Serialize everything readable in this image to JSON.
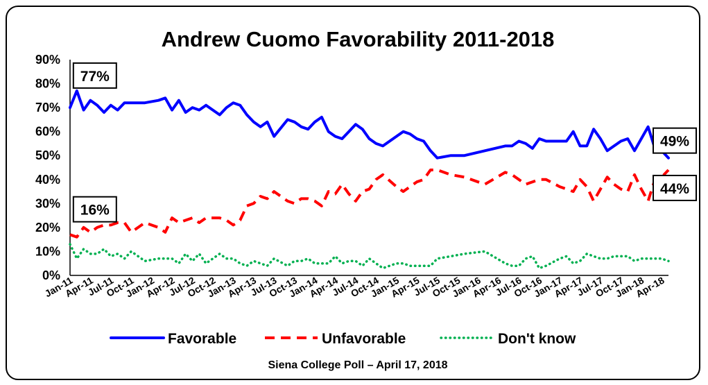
{
  "chart_data": {
    "type": "line",
    "title": "Andrew Cuomo Favorability 2011-2018",
    "source_note": "Siena College Poll – April 17, 2018",
    "ylim": [
      0,
      90
    ],
    "y_ticks": [
      "0%",
      "10%",
      "20%",
      "30%",
      "40%",
      "50%",
      "60%",
      "70%",
      "80%",
      "90%"
    ],
    "x_range": [
      "2011-01",
      "2018-04"
    ],
    "x_tick_labels": [
      "Jan-11",
      "Apr-11",
      "Jul-11",
      "Oct-11",
      "Jan-12",
      "Apr-12",
      "Jul-12",
      "Oct-12",
      "Jan-13",
      "Apr-13",
      "Jul-13",
      "Oct-13",
      "Jan-14",
      "Apr-14",
      "Jul-14",
      "Oct-14",
      "Jan-15",
      "Apr-15",
      "Jul-15",
      "Oct-15",
      "Jan-16",
      "Apr-16",
      "Jul-16",
      "Oct-16",
      "Jan-17",
      "Apr-17",
      "Jul-17",
      "Oct-17",
      "Jan-18",
      "Apr-18"
    ],
    "grid": false,
    "legend_position": "bottom",
    "series": [
      {
        "name": "Favorable",
        "color": "#0000ff",
        "style": "solid",
        "points": [
          [
            "2011-01",
            70
          ],
          [
            "2011-02",
            77
          ],
          [
            "2011-03",
            69
          ],
          [
            "2011-04",
            73
          ],
          [
            "2011-05",
            71
          ],
          [
            "2011-06",
            68
          ],
          [
            "2011-07",
            71
          ],
          [
            "2011-08",
            69
          ],
          [
            "2011-09",
            72
          ],
          [
            "2011-10",
            72
          ],
          [
            "2011-12",
            72
          ],
          [
            "2012-02",
            73
          ],
          [
            "2012-03",
            74
          ],
          [
            "2012-04",
            69
          ],
          [
            "2012-05",
            73
          ],
          [
            "2012-06",
            68
          ],
          [
            "2012-07",
            70
          ],
          [
            "2012-08",
            69
          ],
          [
            "2012-09",
            71
          ],
          [
            "2012-10",
            69
          ],
          [
            "2012-11",
            67
          ],
          [
            "2012-12",
            70
          ],
          [
            "2013-01",
            72
          ],
          [
            "2013-02",
            71
          ],
          [
            "2013-03",
            67
          ],
          [
            "2013-04",
            64
          ],
          [
            "2013-05",
            62
          ],
          [
            "2013-06",
            64
          ],
          [
            "2013-07",
            58
          ],
          [
            "2013-09",
            65
          ],
          [
            "2013-10",
            64
          ],
          [
            "2013-11",
            62
          ],
          [
            "2013-12",
            61
          ],
          [
            "2014-01",
            64
          ],
          [
            "2014-02",
            66
          ],
          [
            "2014-03",
            60
          ],
          [
            "2014-04",
            58
          ],
          [
            "2014-05",
            57
          ],
          [
            "2014-06",
            60
          ],
          [
            "2014-07",
            63
          ],
          [
            "2014-08",
            61
          ],
          [
            "2014-09",
            57
          ],
          [
            "2014-10",
            55
          ],
          [
            "2014-11",
            54
          ],
          [
            "2015-01",
            58
          ],
          [
            "2015-02",
            60
          ],
          [
            "2015-03",
            59
          ],
          [
            "2015-04",
            57
          ],
          [
            "2015-05",
            56
          ],
          [
            "2015-06",
            52
          ],
          [
            "2015-07",
            49
          ],
          [
            "2015-09",
            50
          ],
          [
            "2015-11",
            50
          ],
          [
            "2016-02",
            52
          ],
          [
            "2016-05",
            54
          ],
          [
            "2016-06",
            54
          ],
          [
            "2016-07",
            56
          ],
          [
            "2016-08",
            55
          ],
          [
            "2016-09",
            53
          ],
          [
            "2016-10",
            57
          ],
          [
            "2016-11",
            56
          ],
          [
            "2017-01",
            56
          ],
          [
            "2017-02",
            56
          ],
          [
            "2017-03",
            60
          ],
          [
            "2017-04",
            54
          ],
          [
            "2017-05",
            54
          ],
          [
            "2017-06",
            61
          ],
          [
            "2017-07",
            57
          ],
          [
            "2017-08",
            52
          ],
          [
            "2017-09",
            54
          ],
          [
            "2017-10",
            56
          ],
          [
            "2017-11",
            57
          ],
          [
            "2017-12",
            52
          ],
          [
            "2018-01",
            57
          ],
          [
            "2018-02",
            62
          ],
          [
            "2018-03",
            53
          ],
          [
            "2018-04",
            52
          ],
          [
            "2018-05",
            49
          ]
        ]
      },
      {
        "name": "Unfavorable",
        "color": "#ff0000",
        "style": "dashed",
        "points": [
          [
            "2011-01",
            17
          ],
          [
            "2011-02",
            16
          ],
          [
            "2011-03",
            20
          ],
          [
            "2011-04",
            18
          ],
          [
            "2011-05",
            20
          ],
          [
            "2011-06",
            21
          ],
          [
            "2011-07",
            21
          ],
          [
            "2011-08",
            22
          ],
          [
            "2011-09",
            22
          ],
          [
            "2011-10",
            18
          ],
          [
            "2011-12",
            22
          ],
          [
            "2012-02",
            20
          ],
          [
            "2012-03",
            18
          ],
          [
            "2012-04",
            24
          ],
          [
            "2012-05",
            22
          ],
          [
            "2012-06",
            23
          ],
          [
            "2012-07",
            24
          ],
          [
            "2012-08",
            22
          ],
          [
            "2012-09",
            24
          ],
          [
            "2012-10",
            24
          ],
          [
            "2012-11",
            24
          ],
          [
            "2012-12",
            23
          ],
          [
            "2013-01",
            21
          ],
          [
            "2013-02",
            23
          ],
          [
            "2013-03",
            29
          ],
          [
            "2013-04",
            30
          ],
          [
            "2013-05",
            33
          ],
          [
            "2013-06",
            32
          ],
          [
            "2013-07",
            35
          ],
          [
            "2013-09",
            31
          ],
          [
            "2013-10",
            30
          ],
          [
            "2013-11",
            32
          ],
          [
            "2013-12",
            32
          ],
          [
            "2014-01",
            31
          ],
          [
            "2014-02",
            29
          ],
          [
            "2014-03",
            35
          ],
          [
            "2014-04",
            34
          ],
          [
            "2014-05",
            38
          ],
          [
            "2014-06",
            34
          ],
          [
            "2014-07",
            31
          ],
          [
            "2014-08",
            35
          ],
          [
            "2014-09",
            36
          ],
          [
            "2014-10",
            40
          ],
          [
            "2014-11",
            42
          ],
          [
            "2015-01",
            37
          ],
          [
            "2015-02",
            35
          ],
          [
            "2015-03",
            37
          ],
          [
            "2015-04",
            39
          ],
          [
            "2015-05",
            40
          ],
          [
            "2015-06",
            44
          ],
          [
            "2015-07",
            44
          ],
          [
            "2015-09",
            42
          ],
          [
            "2015-11",
            41
          ],
          [
            "2016-02",
            38
          ],
          [
            "2016-05",
            43
          ],
          [
            "2016-06",
            42
          ],
          [
            "2016-07",
            40
          ],
          [
            "2016-08",
            38
          ],
          [
            "2016-09",
            39
          ],
          [
            "2016-10",
            40
          ],
          [
            "2016-11",
            40
          ],
          [
            "2017-01",
            37
          ],
          [
            "2017-02",
            36
          ],
          [
            "2017-03",
            35
          ],
          [
            "2017-04",
            40
          ],
          [
            "2017-05",
            37
          ],
          [
            "2017-06",
            31
          ],
          [
            "2017-07",
            36
          ],
          [
            "2017-08",
            41
          ],
          [
            "2017-09",
            38
          ],
          [
            "2017-10",
            36
          ],
          [
            "2017-11",
            35
          ],
          [
            "2017-12",
            42
          ],
          [
            "2018-01",
            36
          ],
          [
            "2018-02",
            31
          ],
          [
            "2018-03",
            40
          ],
          [
            "2018-04",
            41
          ],
          [
            "2018-05",
            44
          ]
        ]
      },
      {
        "name": "Don't know",
        "color": "#00b050",
        "style": "dotted",
        "points": [
          [
            "2011-01",
            13
          ],
          [
            "2011-02",
            7
          ],
          [
            "2011-03",
            11
          ],
          [
            "2011-04",
            9
          ],
          [
            "2011-05",
            9
          ],
          [
            "2011-06",
            11
          ],
          [
            "2011-07",
            8
          ],
          [
            "2011-08",
            9
          ],
          [
            "2011-09",
            7
          ],
          [
            "2011-10",
            10
          ],
          [
            "2011-12",
            6
          ],
          [
            "2012-02",
            7
          ],
          [
            "2012-03",
            7
          ],
          [
            "2012-04",
            7
          ],
          [
            "2012-05",
            5
          ],
          [
            "2012-06",
            9
          ],
          [
            "2012-07",
            6
          ],
          [
            "2012-08",
            9
          ],
          [
            "2012-09",
            5
          ],
          [
            "2012-10",
            7
          ],
          [
            "2012-11",
            9
          ],
          [
            "2012-12",
            7
          ],
          [
            "2013-01",
            7
          ],
          [
            "2013-02",
            5
          ],
          [
            "2013-03",
            4
          ],
          [
            "2013-04",
            6
          ],
          [
            "2013-05",
            5
          ],
          [
            "2013-06",
            4
          ],
          [
            "2013-07",
            7
          ],
          [
            "2013-09",
            4
          ],
          [
            "2013-10",
            6
          ],
          [
            "2013-11",
            6
          ],
          [
            "2013-12",
            7
          ],
          [
            "2014-01",
            5
          ],
          [
            "2014-02",
            5
          ],
          [
            "2014-03",
            5
          ],
          [
            "2014-04",
            8
          ],
          [
            "2014-05",
            5
          ],
          [
            "2014-06",
            6
          ],
          [
            "2014-07",
            6
          ],
          [
            "2014-08",
            4
          ],
          [
            "2014-09",
            7
          ],
          [
            "2014-10",
            5
          ],
          [
            "2014-11",
            3
          ],
          [
            "2015-01",
            5
          ],
          [
            "2015-02",
            5
          ],
          [
            "2015-03",
            4
          ],
          [
            "2015-04",
            4
          ],
          [
            "2015-05",
            4
          ],
          [
            "2015-06",
            4
          ],
          [
            "2015-07",
            7
          ],
          [
            "2015-09",
            8
          ],
          [
            "2015-11",
            9
          ],
          [
            "2016-02",
            10
          ],
          [
            "2016-05",
            5
          ],
          [
            "2016-06",
            4
          ],
          [
            "2016-07",
            4
          ],
          [
            "2016-08",
            7
          ],
          [
            "2016-09",
            8
          ],
          [
            "2016-10",
            3
          ],
          [
            "2016-11",
            4
          ],
          [
            "2017-01",
            7
          ],
          [
            "2017-02",
            8
          ],
          [
            "2017-03",
            5
          ],
          [
            "2017-04",
            6
          ],
          [
            "2017-05",
            9
          ],
          [
            "2017-06",
            8
          ],
          [
            "2017-07",
            7
          ],
          [
            "2017-08",
            7
          ],
          [
            "2017-09",
            8
          ],
          [
            "2017-10",
            8
          ],
          [
            "2017-11",
            8
          ],
          [
            "2017-12",
            6
          ],
          [
            "2018-01",
            7
          ],
          [
            "2018-02",
            7
          ],
          [
            "2018-03",
            7
          ],
          [
            "2018-04",
            7
          ],
          [
            "2018-05",
            6
          ]
        ]
      }
    ],
    "annotations": [
      {
        "text": "77%",
        "series": "Favorable",
        "x": "2011-02",
        "y": 77
      },
      {
        "text": "16%",
        "series": "Unfavorable",
        "x": "2011-02",
        "y": 16
      },
      {
        "text": "49%",
        "series": "Favorable",
        "x": "2018-05",
        "y": 49
      },
      {
        "text": "44%",
        "series": "Unfavorable",
        "x": "2018-05",
        "y": 44
      }
    ]
  }
}
